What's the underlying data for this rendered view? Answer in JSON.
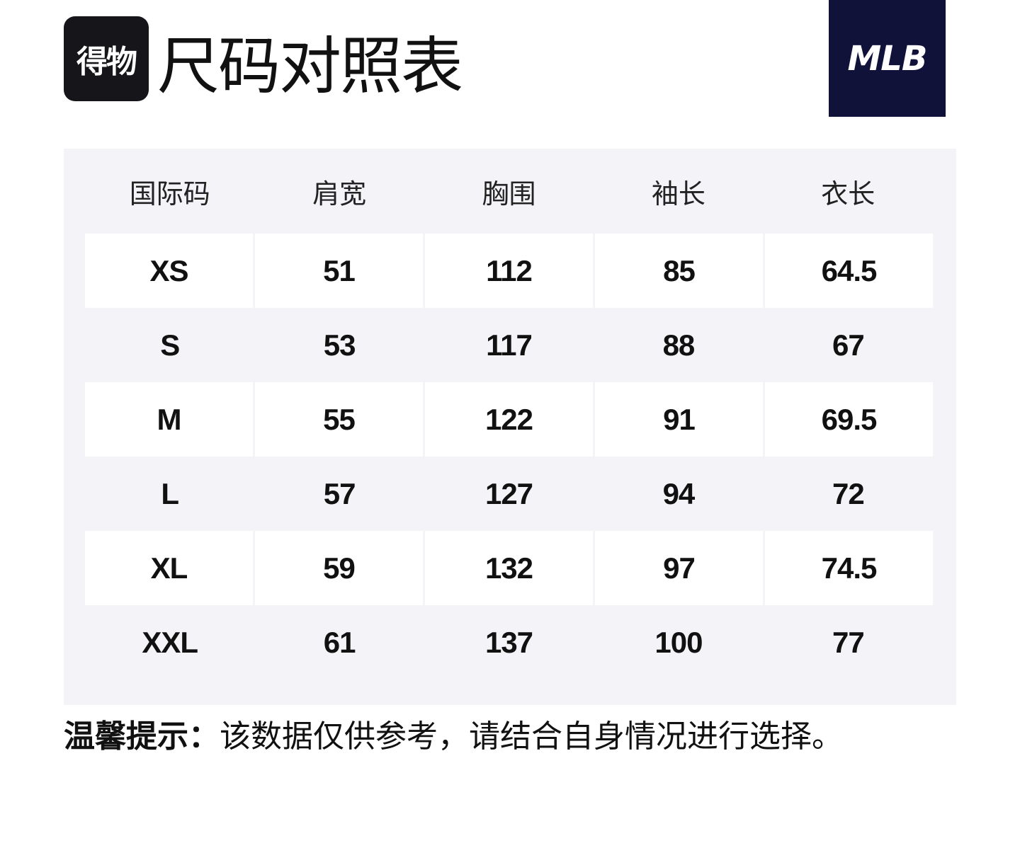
{
  "header": {
    "logo_text": "得物",
    "title": "尺码对照表",
    "brand": "MLB"
  },
  "table": {
    "columns": [
      "国际码",
      "肩宽",
      "胸围",
      "袖长",
      "衣长"
    ],
    "rows": [
      [
        "XS",
        "51",
        "112",
        "85",
        "64.5"
      ],
      [
        "S",
        "53",
        "117",
        "88",
        "67"
      ],
      [
        "M",
        "55",
        "122",
        "91",
        "69.5"
      ],
      [
        "L",
        "57",
        "127",
        "94",
        "72"
      ],
      [
        "XL",
        "59",
        "132",
        "97",
        "74.5"
      ],
      [
        "XXL",
        "61",
        "137",
        "100",
        "77"
      ]
    ]
  },
  "note": {
    "label": "温馨提示：",
    "text": "该数据仅供参考，请结合自身情况进行选择。"
  },
  "colors": {
    "brand_bg": "#11123a",
    "logo_bg": "#16161a",
    "panel_bg": "#f4f4f8",
    "row_light": "#ffffff"
  }
}
